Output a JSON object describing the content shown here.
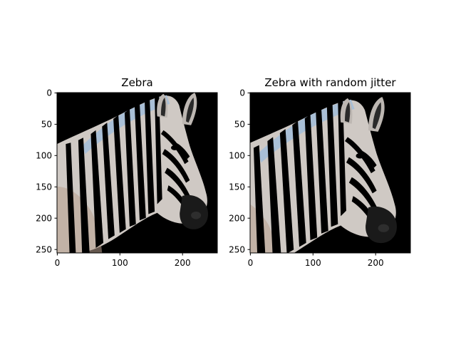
{
  "figure": {
    "background": "#ffffff",
    "image_width": 256,
    "image_height": 256,
    "image_subject": "zebra head and neck with black and white stripes on black background",
    "panels": [
      {
        "id": "original",
        "title": "Zebra",
        "xticks": [
          "0",
          "100",
          "200"
        ],
        "yticks": [
          "0",
          "50",
          "100",
          "150",
          "200",
          "250"
        ],
        "jitter": false
      },
      {
        "id": "jittered",
        "title": "Zebra with random jitter",
        "xticks": [
          "0",
          "100",
          "200"
        ],
        "yticks": [
          "0",
          "50",
          "100",
          "150",
          "200",
          "250"
        ],
        "jitter": true
      }
    ],
    "colors": {
      "image_background": "#000000",
      "stripe_light": "#d8d4d0",
      "mane_light": "#a9bfd6",
      "skin_warm": "#b89f8e",
      "axis": "#000000"
    }
  }
}
